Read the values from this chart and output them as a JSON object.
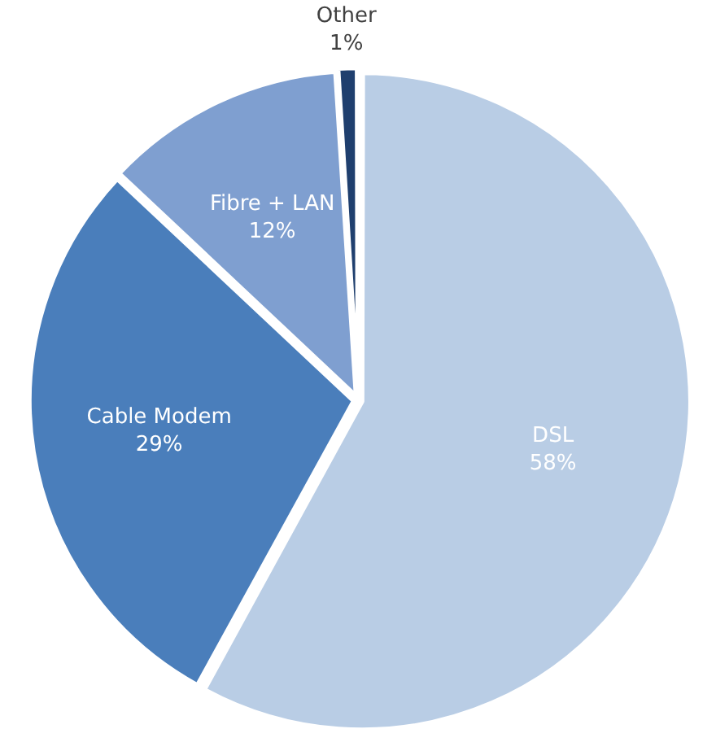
{
  "chart_data": {
    "type": "pie",
    "categories": [
      "DSL",
      "Cable Modem",
      "Fibre + LAN",
      "Other"
    ],
    "values": [
      58,
      29,
      12,
      1
    ],
    "colors": [
      "#b9cde5",
      "#4a7ebb",
      "#7f9fd0",
      "#1f3f6e"
    ],
    "value_labels": [
      "58%",
      "29%",
      "12%",
      "1%"
    ],
    "legend": false
  }
}
